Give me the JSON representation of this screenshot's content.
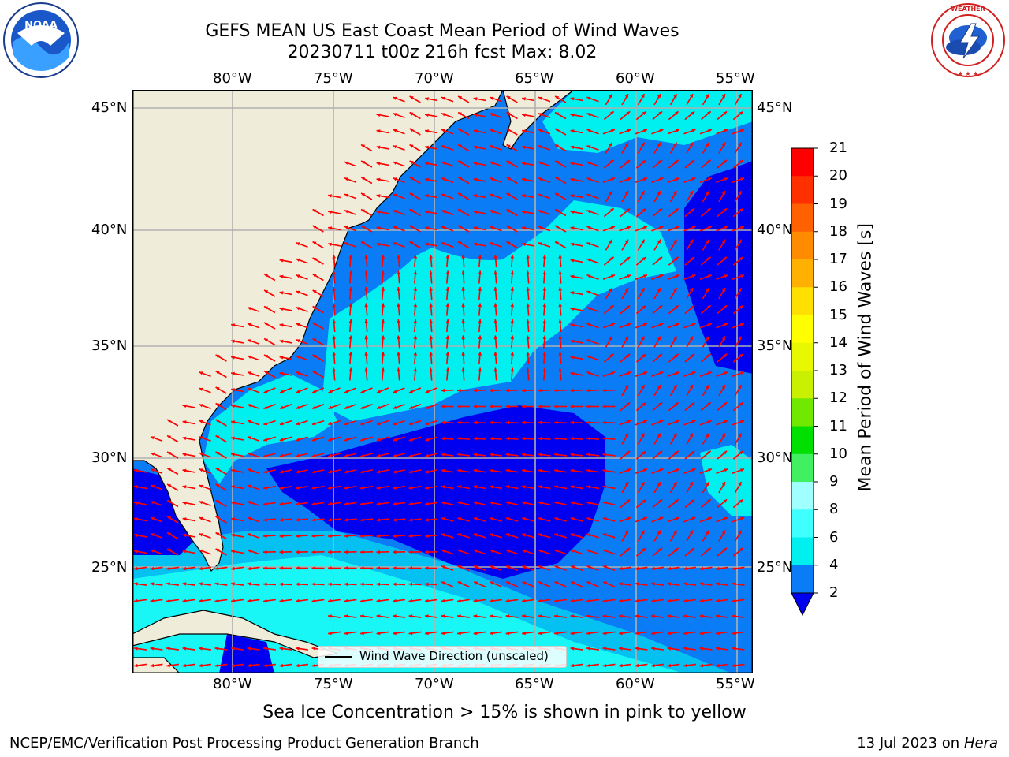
{
  "header": {
    "title_line1": "GEFS MEAN US East Coast Mean Period of Wind Waves",
    "title_line2": "20230711 t00z 216h fcst   Max: 8.02"
  },
  "logos": {
    "left_name": "noaa-logo",
    "left_text": "NOAA",
    "right_name": "nws-logo",
    "right_text": "NATIONAL WEATHER SERVICE"
  },
  "map": {
    "lon_ticks": [
      "80°W",
      "75°W",
      "70°W",
      "65°W",
      "60°W",
      "55°W"
    ],
    "lat_ticks": [
      "45°N",
      "40°N",
      "35°N",
      "30°N",
      "25°N"
    ],
    "legend_label": "Wind Wave Direction (unscaled)",
    "colors": {
      "land": "#efedd9",
      "level_2_4": "#0a7cf5",
      "level_4_6": "#00f0f0",
      "level_6_8": "#40ffff",
      "below_2": "#0000f0",
      "arrow": "#ff0000",
      "grid": "#b0b0b0"
    }
  },
  "colorbar": {
    "label": "Mean Period of Wind Waves [s]",
    "ticks": [
      "21",
      "20",
      "19",
      "18",
      "17",
      "16",
      "15",
      "14",
      "13",
      "12",
      "11",
      "10",
      "9",
      "8",
      "6",
      "4",
      "2"
    ],
    "colors": [
      "#ff0000",
      "#ff3000",
      "#ff6000",
      "#ff8c00",
      "#ffb000",
      "#ffe000",
      "#ffff00",
      "#e8f800",
      "#c8f000",
      "#70e800",
      "#00e000",
      "#40f060",
      "#a0ffff",
      "#40ffff",
      "#00f0f0",
      "#0a7cf5"
    ],
    "extend_below_color": "#0000f0"
  },
  "notes": {
    "ice_note": "Sea Ice Concentration > 15% is shown in pink to yellow",
    "footer_left": "NCEP/EMC/Verification Post Processing Product Generation Branch",
    "footer_date": "13 Jul 2023 on ",
    "footer_machine": "Hera"
  }
}
